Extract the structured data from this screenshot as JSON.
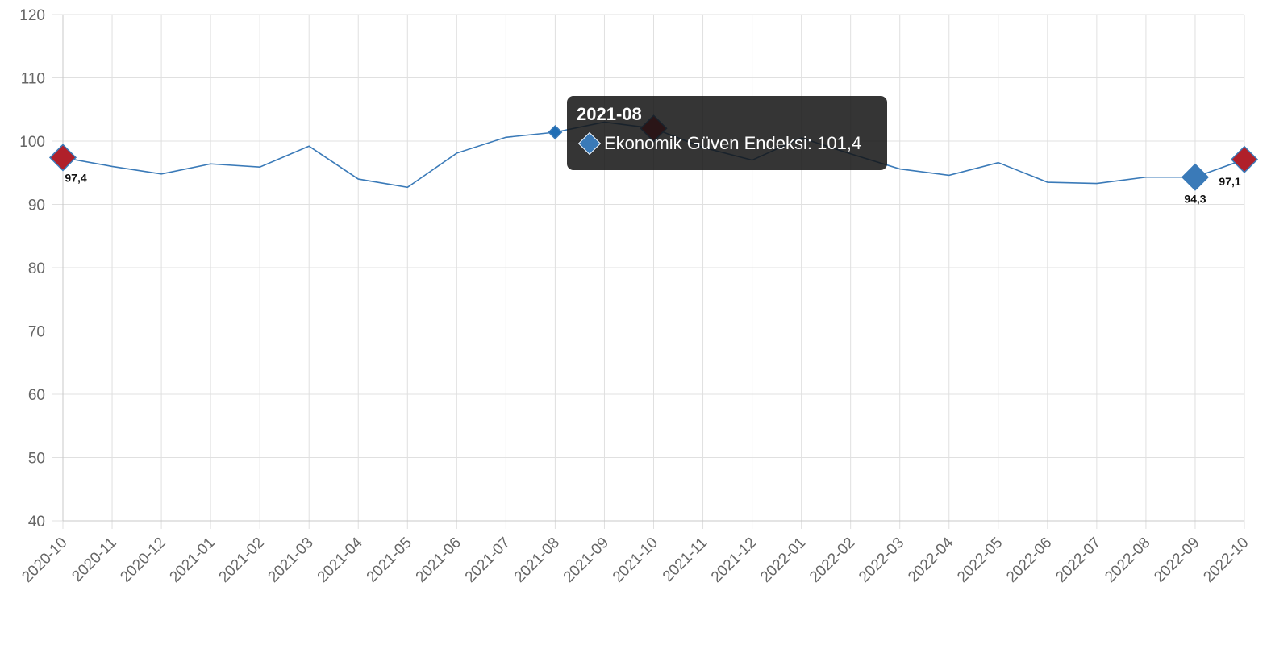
{
  "chart_data": {
    "type": "line",
    "x": [
      "2020-10",
      "2020-11",
      "2020-12",
      "2021-01",
      "2021-02",
      "2021-03",
      "2021-04",
      "2021-05",
      "2021-06",
      "2021-07",
      "2021-08",
      "2021-09",
      "2021-10",
      "2021-11",
      "2021-12",
      "2022-01",
      "2022-02",
      "2022-03",
      "2022-04",
      "2022-05",
      "2022-06",
      "2022-07",
      "2022-08",
      "2022-09",
      "2022-10"
    ],
    "series": [
      {
        "name": "Ekonomik Güven Endeksi",
        "values": [
          97.4,
          96.0,
          94.8,
          96.4,
          95.9,
          99.2,
          94.0,
          92.7,
          98.1,
          100.6,
          101.4,
          103.0,
          102.0,
          99.0,
          97.0,
          100.5,
          98.0,
          95.6,
          94.6,
          96.6,
          93.5,
          93.3,
          94.3,
          94.3,
          97.1
        ],
        "color": "#3a7ab8"
      }
    ],
    "ylim": [
      40,
      120
    ],
    "yticks": [
      40,
      50,
      60,
      70,
      80,
      90,
      100,
      110,
      120
    ],
    "grid": true,
    "highlight_points": [
      {
        "x": "2020-10",
        "value": 97.4,
        "label": "97,4",
        "color": "#b0202a"
      },
      {
        "x": "2021-10",
        "value": 102.0,
        "label": "",
        "color": "#b0202a"
      },
      {
        "x": "2022-09",
        "value": 94.3,
        "label": "94,3",
        "color": "#3a7ab8"
      },
      {
        "x": "2022-10",
        "value": 97.1,
        "label": "97,1",
        "color": "#b0202a"
      }
    ],
    "tooltip": {
      "title": "2021-08",
      "series_label": "Ekonomik Güven Endeksi: 101,4",
      "x": "2021-08",
      "value": 101.4
    }
  }
}
